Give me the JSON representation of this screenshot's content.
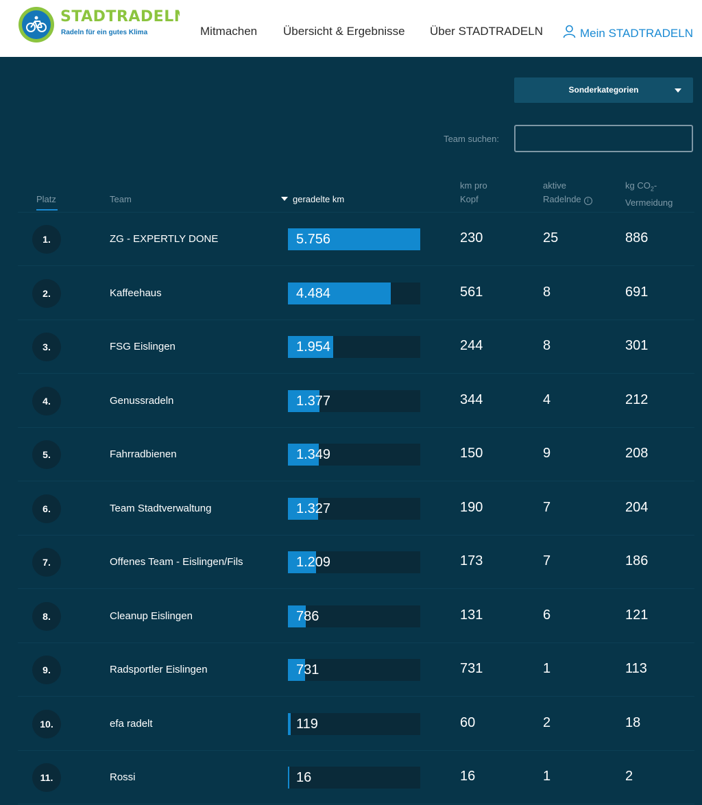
{
  "brand": {
    "name": "STADTRADELN",
    "tagline": "Radeln für ein gutes Klima"
  },
  "nav": {
    "items": [
      "Mitmachen",
      "Übersicht & Ergebnisse",
      "Über STADTRADELN"
    ],
    "account": "Mein STADTRADELN"
  },
  "controls": {
    "category_label": "Sonderkategorien",
    "search_label": "Team suchen:",
    "search_value": ""
  },
  "table": {
    "headers": {
      "rank": "Platz",
      "team": "Team",
      "km": "geradelte km",
      "km_per_head": [
        "km pro",
        "Kopf"
      ],
      "active": [
        "aktive",
        "Radelnde"
      ],
      "co2": [
        "kg CO",
        "2",
        "-",
        "Vermeidung"
      ]
    },
    "info_glyph": "i",
    "max_km": 5756,
    "rows": [
      {
        "rank": "1.",
        "team": "ZG - EXPERTLY DONE",
        "km": "5.756",
        "km_num": 5756,
        "per_head": "230",
        "active": "25",
        "co2": "886"
      },
      {
        "rank": "2.",
        "team": "Kaffeehaus",
        "km": "4.484",
        "km_num": 4484,
        "per_head": "561",
        "active": "8",
        "co2": "691"
      },
      {
        "rank": "3.",
        "team": "FSG Eislingen",
        "km": "1.954",
        "km_num": 1954,
        "per_head": "244",
        "active": "8",
        "co2": "301"
      },
      {
        "rank": "4.",
        "team": "Genussradeln",
        "km": "1.377",
        "km_num": 1377,
        "per_head": "344",
        "active": "4",
        "co2": "212"
      },
      {
        "rank": "5.",
        "team": "Fahrradbienen",
        "km": "1.349",
        "km_num": 1349,
        "per_head": "150",
        "active": "9",
        "co2": "208"
      },
      {
        "rank": "6.",
        "team": "Team Stadtverwaltung",
        "km": "1.327",
        "km_num": 1327,
        "per_head": "190",
        "active": "7",
        "co2": "204"
      },
      {
        "rank": "7.",
        "team": "Offenes Team - Eislingen/Fils",
        "km": "1.209",
        "km_num": 1209,
        "per_head": "173",
        "active": "7",
        "co2": "186"
      },
      {
        "rank": "8.",
        "team": "Cleanup Eislingen",
        "km": "786",
        "km_num": 786,
        "per_head": "131",
        "active": "6",
        "co2": "121"
      },
      {
        "rank": "9.",
        "team": "Radsportler Eislingen",
        "km": "731",
        "km_num": 731,
        "per_head": "731",
        "active": "1",
        "co2": "113"
      },
      {
        "rank": "10.",
        "team": "efa radelt",
        "km": "119",
        "km_num": 119,
        "per_head": "60",
        "active": "2",
        "co2": "18"
      },
      {
        "rank": "11.",
        "team": "Rossi",
        "km": "16",
        "km_num": 16,
        "per_head": "16",
        "active": "1",
        "co2": "2"
      }
    ]
  },
  "colors": {
    "background": "#073549",
    "accent": "#1289cf",
    "brand_green": "#8cc43f",
    "brand_blue": "#1576b8"
  }
}
